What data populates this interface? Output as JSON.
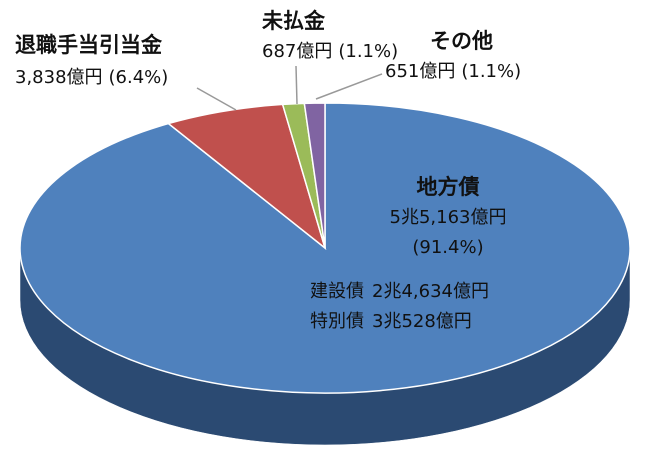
{
  "chart_data": {
    "type": "pie3d",
    "categories": [
      "地方債",
      "退職手当引当金",
      "未払金",
      "その他"
    ],
    "values": [
      55163,
      3838,
      687,
      651
    ],
    "value_labels": [
      "5兆5,163億円",
      "3,838億円",
      "687億円",
      "651億円"
    ],
    "percents": [
      91.4,
      6.4,
      1.1,
      1.1
    ],
    "percent_labels": [
      "(91.4%)",
      "(6.4%)",
      "(1.1%)",
      "(1.1%)"
    ],
    "colors": [
      "#4f81bd",
      "#c0504d",
      "#9bbb59",
      "#8064a2"
    ],
    "side_colors": [
      "#2b4a72",
      "#7d2b29",
      "#5f7a30",
      "#4d3a6a"
    ],
    "breakdown": [
      {
        "name": "建設債",
        "value": 24634,
        "label": "2兆4,634億円"
      },
      {
        "name": "特別債",
        "value": 30528,
        "label": "3兆528億円"
      }
    ]
  }
}
